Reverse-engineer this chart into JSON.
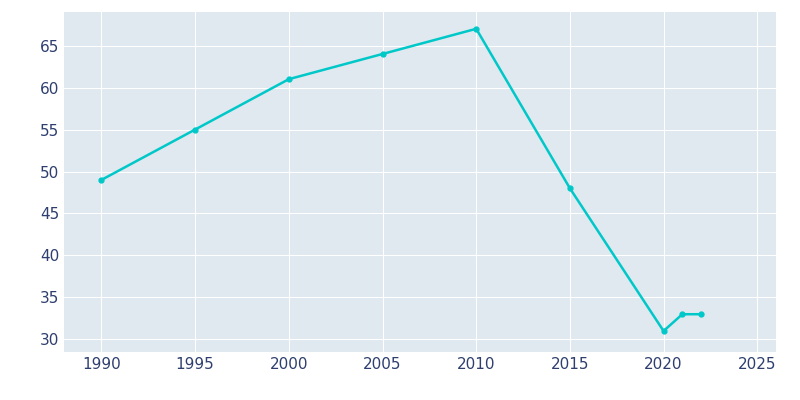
{
  "years": [
    1990,
    1995,
    2000,
    2005,
    2010,
    2015,
    2020,
    2021,
    2022
  ],
  "population": [
    49,
    55,
    61,
    64,
    67,
    48,
    31,
    33,
    33
  ],
  "line_color": "#00C8C8",
  "fig_bg_color": "#FFFFFF",
  "plot_bg_color": "#E0E8F0",
  "grid_color": "#FFFFFF",
  "tick_color": "#2E3F6F",
  "xlim": [
    1988,
    2026
  ],
  "ylim": [
    28.5,
    69
  ],
  "yticks": [
    30,
    35,
    40,
    45,
    50,
    55,
    60,
    65
  ],
  "xticks": [
    1990,
    1995,
    2000,
    2005,
    2010,
    2015,
    2020,
    2025
  ],
  "tick_fontsize": 11
}
